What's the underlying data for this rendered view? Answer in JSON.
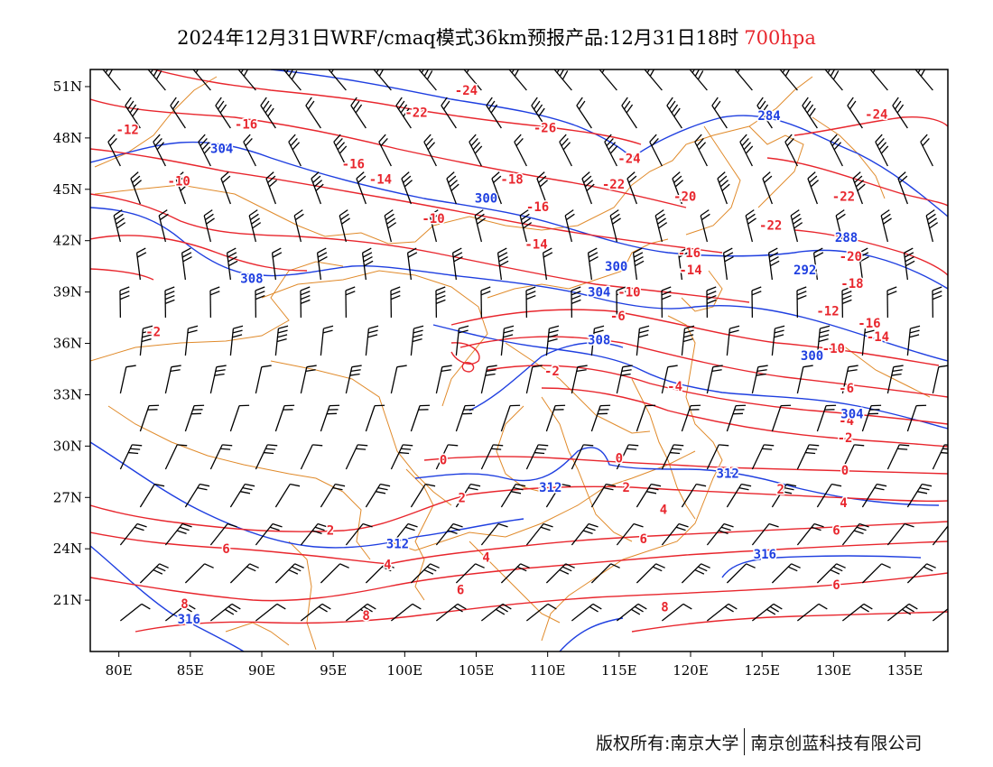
{
  "title": {
    "main": "2024年12月31日WRF/cmaq模式36km预报产品:12月31日18时",
    "level": "700hpa",
    "level_color": "#e8262d"
  },
  "map": {
    "projection": "lat-lon",
    "extent": {
      "lon_min": 78,
      "lon_max": 138,
      "lat_min": 18,
      "lat_max": 52
    },
    "lat_ticks": [
      {
        "value": 51,
        "label": "51N"
      },
      {
        "value": 48,
        "label": "48N"
      },
      {
        "value": 45,
        "label": "45N"
      },
      {
        "value": 42,
        "label": "42N"
      },
      {
        "value": 39,
        "label": "39N"
      },
      {
        "value": 36,
        "label": "36N"
      },
      {
        "value": 33,
        "label": "33N"
      },
      {
        "value": 30,
        "label": "30N"
      },
      {
        "value": 27,
        "label": "27N"
      },
      {
        "value": 24,
        "label": "24N"
      },
      {
        "value": 21,
        "label": "21N"
      }
    ],
    "lon_ticks": [
      {
        "value": 80,
        "label": "80E"
      },
      {
        "value": 85,
        "label": "85E"
      },
      {
        "value": 90,
        "label": "90E"
      },
      {
        "value": 95,
        "label": "95E"
      },
      {
        "value": 100,
        "label": "100E"
      },
      {
        "value": 105,
        "label": "105E"
      },
      {
        "value": 110,
        "label": "110E"
      },
      {
        "value": 115,
        "label": "115E"
      },
      {
        "value": 120,
        "label": "120E"
      },
      {
        "value": 125,
        "label": "125E"
      },
      {
        "value": 130,
        "label": "130E"
      },
      {
        "value": 135,
        "label": "135E"
      }
    ],
    "colors": {
      "temperature": "#e8262d",
      "height": "#1f3fe0",
      "wind": "#000000",
      "boundary": "#e08a2a"
    },
    "temperature_labels": [
      {
        "text": "-24",
        "lon": 104.3,
        "lat": 50.8
      },
      {
        "text": "-22",
        "lon": 100.8,
        "lat": 49.5
      },
      {
        "text": "-16",
        "lon": 88.9,
        "lat": 48.8
      },
      {
        "text": "-12",
        "lon": 80.6,
        "lat": 48.5
      },
      {
        "text": "-26",
        "lon": 109.8,
        "lat": 48.6
      },
      {
        "text": "-24",
        "lon": 115.7,
        "lat": 46.8
      },
      {
        "text": "-24",
        "lon": 133.0,
        "lat": 49.4
      },
      {
        "text": "-16",
        "lon": 96.4,
        "lat": 46.5
      },
      {
        "text": "-10",
        "lon": 84.2,
        "lat": 45.5
      },
      {
        "text": "-14",
        "lon": 98.3,
        "lat": 45.6
      },
      {
        "text": "-18",
        "lon": 107.5,
        "lat": 45.6
      },
      {
        "text": "-22",
        "lon": 114.6,
        "lat": 45.3
      },
      {
        "text": "-20",
        "lon": 119.6,
        "lat": 44.6
      },
      {
        "text": "-22",
        "lon": 130.7,
        "lat": 44.6
      },
      {
        "text": "-16",
        "lon": 109.3,
        "lat": 44.0
      },
      {
        "text": "-10",
        "lon": 102.0,
        "lat": 43.3
      },
      {
        "text": "-22",
        "lon": 125.6,
        "lat": 42.9
      },
      {
        "text": "-14",
        "lon": 109.2,
        "lat": 41.8
      },
      {
        "text": "-16",
        "lon": 119.9,
        "lat": 41.3
      },
      {
        "text": "-14",
        "lon": 120.0,
        "lat": 40.3
      },
      {
        "text": "-20",
        "lon": 131.2,
        "lat": 41.1
      },
      {
        "text": "-18",
        "lon": 131.3,
        "lat": 39.5
      },
      {
        "text": "-10",
        "lon": 115.7,
        "lat": 39.0
      },
      {
        "text": "-6",
        "lon": 114.9,
        "lat": 37.6
      },
      {
        "text": "-12",
        "lon": 129.6,
        "lat": 37.9
      },
      {
        "text": "-16",
        "lon": 132.5,
        "lat": 37.2
      },
      {
        "text": "-10",
        "lon": 130.0,
        "lat": 35.7
      },
      {
        "text": "-14",
        "lon": 133.1,
        "lat": 36.4
      },
      {
        "text": "-2",
        "lon": 110.3,
        "lat": 34.4
      },
      {
        "text": "-4",
        "lon": 118.9,
        "lat": 33.5
      },
      {
        "text": "-6",
        "lon": 130.9,
        "lat": 33.4
      },
      {
        "text": "-4",
        "lon": 130.9,
        "lat": 31.5
      },
      {
        "text": "-2",
        "lon": 130.8,
        "lat": 30.5
      },
      {
        "text": "-2",
        "lon": 82.4,
        "lat": 36.7
      },
      {
        "text": "0",
        "lon": 102.7,
        "lat": 29.2
      },
      {
        "text": "0",
        "lon": 115.0,
        "lat": 29.3
      },
      {
        "text": "0",
        "lon": 130.8,
        "lat": 28.6
      },
      {
        "text": "2",
        "lon": 115.5,
        "lat": 27.6
      },
      {
        "text": "2",
        "lon": 104.0,
        "lat": 27.0
      },
      {
        "text": "2",
        "lon": 126.3,
        "lat": 27.5
      },
      {
        "text": "2",
        "lon": 94.8,
        "lat": 25.1
      },
      {
        "text": "4",
        "lon": 118.1,
        "lat": 26.3
      },
      {
        "text": "4",
        "lon": 130.7,
        "lat": 26.7
      },
      {
        "text": "4",
        "lon": 98.8,
        "lat": 23.1
      },
      {
        "text": "4",
        "lon": 105.7,
        "lat": 23.5
      },
      {
        "text": "6",
        "lon": 87.5,
        "lat": 24.0
      },
      {
        "text": "6",
        "lon": 116.7,
        "lat": 24.6
      },
      {
        "text": "6",
        "lon": 130.2,
        "lat": 25.1
      },
      {
        "text": "6",
        "lon": 103.9,
        "lat": 21.6
      },
      {
        "text": "6",
        "lon": 130.2,
        "lat": 21.9
      },
      {
        "text": "8",
        "lon": 84.6,
        "lat": 20.8
      },
      {
        "text": "8",
        "lon": 97.3,
        "lat": 20.1
      },
      {
        "text": "8",
        "lon": 118.2,
        "lat": 20.6
      }
    ],
    "height_labels": [
      {
        "text": "284",
        "lon": 125.5,
        "lat": 49.3
      },
      {
        "text": "304",
        "lon": 87.2,
        "lat": 47.4
      },
      {
        "text": "300",
        "lon": 105.7,
        "lat": 44.5
      },
      {
        "text": "288",
        "lon": 130.9,
        "lat": 42.2
      },
      {
        "text": "308",
        "lon": 89.3,
        "lat": 39.8
      },
      {
        "text": "300",
        "lon": 114.8,
        "lat": 40.5
      },
      {
        "text": "292",
        "lon": 128.0,
        "lat": 40.3
      },
      {
        "text": "304",
        "lon": 113.6,
        "lat": 39.0
      },
      {
        "text": "308",
        "lon": 113.6,
        "lat": 36.2
      },
      {
        "text": "300",
        "lon": 128.5,
        "lat": 35.3
      },
      {
        "text": "304",
        "lon": 131.3,
        "lat": 31.9
      },
      {
        "text": "312",
        "lon": 122.6,
        "lat": 28.4
      },
      {
        "text": "312",
        "lon": 110.2,
        "lat": 27.6
      },
      {
        "text": "312",
        "lon": 99.5,
        "lat": 24.3
      },
      {
        "text": "316",
        "lon": 125.2,
        "lat": 23.7
      },
      {
        "text": "316",
        "lon": 84.9,
        "lat": 19.9
      }
    ]
  },
  "footer": {
    "copyright": "版权所有:南京大学",
    "company": "南京创蓝科技有限公司"
  }
}
